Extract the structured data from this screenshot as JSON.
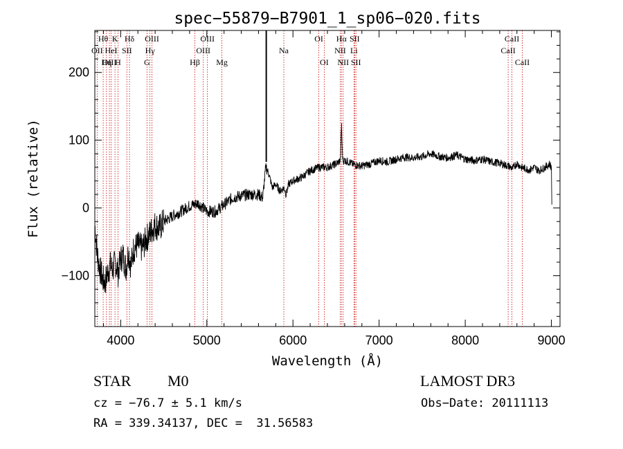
{
  "chart_data": {
    "type": "line",
    "title": "spec−55879−B7901_1_sp06−020.fits",
    "xlabel": "Wavelength (Å)",
    "ylabel": "Flux (relative)",
    "xlim": [
      3700,
      9100
    ],
    "ylim": [
      -175,
      262
    ],
    "xticks": [
      4000,
      5000,
      6000,
      7000,
      8000,
      9000
    ],
    "xtick_labels": [
      "4000",
      "5000",
      "6000",
      "7000",
      "8000",
      "9000"
    ],
    "yticks": [
      -100,
      0,
      100,
      200
    ],
    "ytick_labels": [
      "−100",
      "0",
      "100",
      "200"
    ],
    "series": [
      {
        "name": "spectrum",
        "x": [
          3700,
          3730,
          3760,
          3790,
          3820,
          3850,
          3880,
          3910,
          3940,
          3970,
          4000,
          4030,
          4060,
          4090,
          4120,
          4150,
          4200,
          4250,
          4300,
          4350,
          4400,
          4450,
          4500,
          4600,
          4700,
          4800,
          4900,
          5000,
          5100,
          5200,
          5300,
          5400,
          5500,
          5600,
          5650,
          5680,
          5690,
          5720,
          5760,
          5800,
          5850,
          5900,
          5920,
          5950,
          6000,
          6100,
          6200,
          6300,
          6400,
          6500,
          6550,
          6560,
          6565,
          6570,
          6580,
          6600,
          6650,
          6700,
          6800,
          6900,
          7000,
          7100,
          7200,
          7300,
          7400,
          7500,
          7600,
          7700,
          7800,
          7900,
          8000,
          8100,
          8200,
          8300,
          8400,
          8500,
          8550,
          8600,
          8650,
          8700,
          8750,
          8800,
          8850,
          8900,
          8950,
          8980,
          9000,
          9005
        ],
        "y": [
          -25,
          -70,
          -90,
          -105,
          -110,
          -95,
          -85,
          -90,
          -80,
          -95,
          -75,
          -70,
          -90,
          -65,
          -85,
          -60,
          -55,
          -60,
          -45,
          -35,
          -25,
          -30,
          -20,
          -12,
          -5,
          3,
          7,
          -5,
          -5,
          5,
          15,
          18,
          20,
          20,
          15,
          55,
          60,
          50,
          30,
          35,
          25,
          30,
          20,
          35,
          40,
          45,
          55,
          60,
          60,
          65,
          70,
          110,
          125,
          90,
          70,
          70,
          68,
          64,
          62,
          65,
          70,
          68,
          72,
          75,
          74,
          76,
          80,
          76,
          74,
          78,
          72,
          70,
          72,
          68,
          66,
          62,
          58,
          66,
          60,
          58,
          56,
          60,
          55,
          58,
          62,
          65,
          60,
          5
        ],
        "line_color": "#000000"
      }
    ],
    "spike": {
      "x": 5690,
      "y_top": 262,
      "y_bottom": 68
    },
    "lines": [
      {
        "label": "Hθ",
        "x": 3797,
        "row": 1
      },
      {
        "label": "OII",
        "x": 3727,
        "row": 2
      },
      {
        "label": "OIII",
        "x": 3869,
        "row": 3
      },
      {
        "label": "HeI",
        "x": 3889,
        "row": 2
      },
      {
        "label": "K",
        "x": 3934,
        "row": 1
      },
      {
        "label": "Hη",
        "x": 3835,
        "row": 3
      },
      {
        "label": "SII",
        "x": 4072,
        "row": 2
      },
      {
        "label": "H",
        "x": 3969,
        "row": 3
      },
      {
        "label": "Hδ",
        "x": 4102,
        "row": 1
      },
      {
        "label": "OIII",
        "x": 4363,
        "row": 1
      },
      {
        "label": "Hγ",
        "x": 4340,
        "row": 2
      },
      {
        "label": "G",
        "x": 4305,
        "row": 3
      },
      {
        "label": "OIII",
        "x": 5007,
        "row": 1
      },
      {
        "label": "OIII",
        "x": 4959,
        "row": 2
      },
      {
        "label": "Hβ",
        "x": 4861,
        "row": 3
      },
      {
        "label": "Mg",
        "x": 5175,
        "row": 3
      },
      {
        "label": "Na",
        "x": 5894,
        "row": 2
      },
      {
        "label": "OI",
        "x": 6300,
        "row": 1
      },
      {
        "label": "OI",
        "x": 6363,
        "row": 3
      },
      {
        "label": "Hα",
        "x": 6563,
        "row": 1
      },
      {
        "label": "NII",
        "x": 6548,
        "row": 2
      },
      {
        "label": "NII",
        "x": 6583,
        "row": 3
      },
      {
        "label": "SII",
        "x": 6716,
        "row": 1
      },
      {
        "label": "Li",
        "x": 6708,
        "row": 2
      },
      {
        "label": "SII",
        "x": 6731,
        "row": 3
      },
      {
        "label": "CaII",
        "x": 8542,
        "row": 1
      },
      {
        "label": "CaII",
        "x": 8498,
        "row": 2
      },
      {
        "label": "CaII",
        "x": 8662,
        "row": 3
      }
    ]
  },
  "info": {
    "object_class": "STAR",
    "subclass": "M0",
    "survey": "LAMOST DR3",
    "cz": "cz = −76.7 ± 5.1 km/s",
    "obs_date": "Obs−Date: 20111113",
    "radec": "RA = 339.34137, DEC =  31.56583"
  }
}
